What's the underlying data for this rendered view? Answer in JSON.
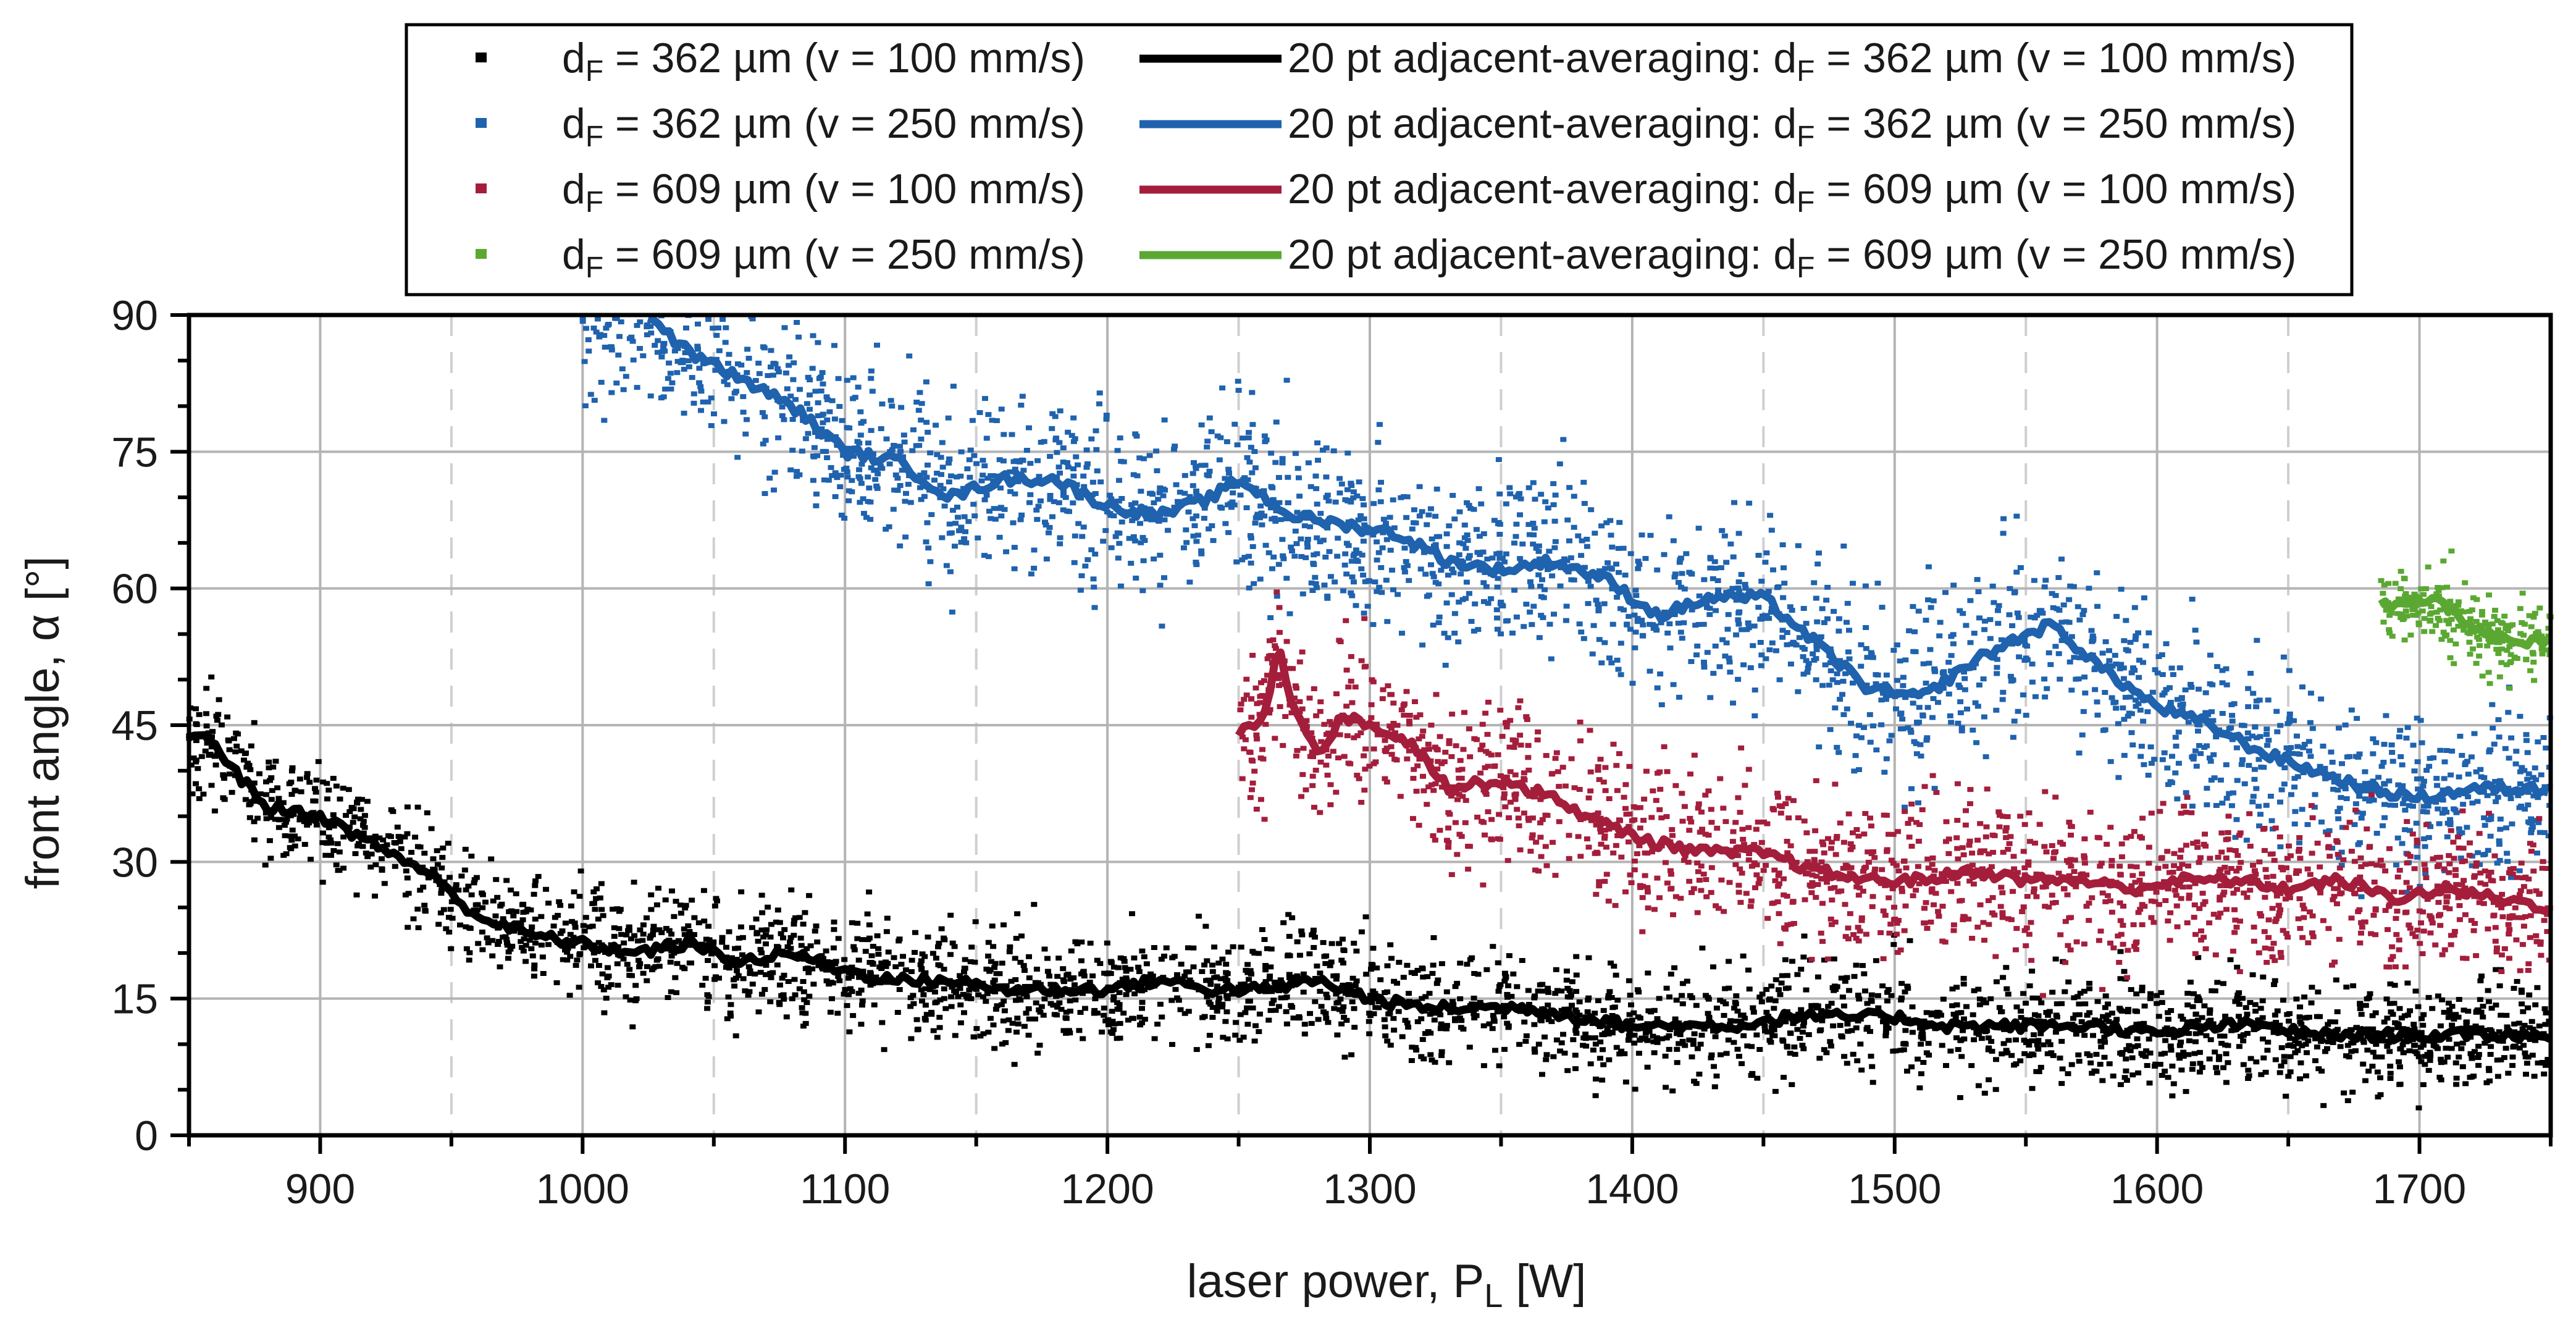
{
  "chart_data": {
    "type": "scatter",
    "title": "",
    "xlabel": "laser power, P_L [W]",
    "ylabel": "front angle, α [°]",
    "xlim": [
      850,
      1750
    ],
    "ylim": [
      0,
      90
    ],
    "xticks": [
      900,
      1000,
      1100,
      1200,
      1300,
      1400,
      1500,
      1600,
      1700
    ],
    "yticks": [
      0,
      15,
      30,
      45,
      60,
      75,
      90
    ],
    "grid": true,
    "legend_position": "top-center (outside plot)",
    "series": [
      {
        "name": "d_F = 362 µm (v = 100 mm/s)",
        "avg_name": "20 pt adjacent-averaging: d_F = 362 µm (v = 100 mm/s)",
        "color": "#000000",
        "x_range": [
          850,
          1750
        ],
        "scatter_spread": 4.5,
        "avg": [
          [
            850,
            44
          ],
          [
            860,
            43
          ],
          [
            870,
            39
          ],
          [
            880,
            36
          ],
          [
            900,
            35
          ],
          [
            920,
            32
          ],
          [
            940,
            29
          ],
          [
            960,
            24
          ],
          [
            980,
            22
          ],
          [
            1000,
            21
          ],
          [
            1020,
            20
          ],
          [
            1040,
            21
          ],
          [
            1060,
            19
          ],
          [
            1080,
            20
          ],
          [
            1100,
            18
          ],
          [
            1120,
            17
          ],
          [
            1140,
            17
          ],
          [
            1160,
            16
          ],
          [
            1180,
            16
          ],
          [
            1200,
            16
          ],
          [
            1220,
            17
          ],
          [
            1240,
            16
          ],
          [
            1260,
            16
          ],
          [
            1280,
            17
          ],
          [
            1300,
            15
          ],
          [
            1320,
            14
          ],
          [
            1340,
            14
          ],
          [
            1360,
            14
          ],
          [
            1380,
            13
          ],
          [
            1400,
            12
          ],
          [
            1420,
            12
          ],
          [
            1440,
            12
          ],
          [
            1460,
            13
          ],
          [
            1480,
            13
          ],
          [
            1500,
            13
          ],
          [
            1520,
            12
          ],
          [
            1540,
            12
          ],
          [
            1560,
            12
          ],
          [
            1580,
            12
          ],
          [
            1600,
            11
          ],
          [
            1620,
            12
          ],
          [
            1640,
            12
          ],
          [
            1660,
            11
          ],
          [
            1680,
            11
          ],
          [
            1700,
            11
          ],
          [
            1720,
            11
          ],
          [
            1750,
            11
          ]
        ]
      },
      {
        "name": "d_F = 362 µm (v = 250 mm/s)",
        "avg_name": "20 pt adjacent-averaging: d_F = 362 µm (v = 250 mm/s)",
        "color": "#1f62ae",
        "x_range": [
          1000,
          1750
        ],
        "scatter_spread": 7,
        "avg": [
          [
            1025,
            90
          ],
          [
            1040,
            86
          ],
          [
            1060,
            83
          ],
          [
            1080,
            80
          ],
          [
            1100,
            75
          ],
          [
            1120,
            74
          ],
          [
            1140,
            70
          ],
          [
            1160,
            72
          ],
          [
            1180,
            72
          ],
          [
            1200,
            69
          ],
          [
            1220,
            68
          ],
          [
            1240,
            70
          ],
          [
            1250,
            72
          ],
          [
            1270,
            68
          ],
          [
            1290,
            67
          ],
          [
            1310,
            66
          ],
          [
            1330,
            63
          ],
          [
            1350,
            62
          ],
          [
            1370,
            63
          ],
          [
            1390,
            61
          ],
          [
            1410,
            57
          ],
          [
            1430,
            59
          ],
          [
            1450,
            59
          ],
          [
            1470,
            54
          ],
          [
            1490,
            49
          ],
          [
            1510,
            48
          ],
          [
            1530,
            52
          ],
          [
            1550,
            55
          ],
          [
            1560,
            56
          ],
          [
            1580,
            51
          ],
          [
            1600,
            47
          ],
          [
            1620,
            45
          ],
          [
            1640,
            42
          ],
          [
            1660,
            40
          ],
          [
            1680,
            38
          ],
          [
            1700,
            37
          ],
          [
            1720,
            38
          ],
          [
            1750,
            38
          ]
        ]
      },
      {
        "name": "d_F = 609 µm (v = 100 mm/s)",
        "avg_name": "20 pt adjacent-averaging: d_F = 609 µm (v = 100 mm/s)",
        "color": "#a41e3c",
        "x_range": [
          1250,
          1750
        ],
        "scatter_spread": 6,
        "avg": [
          [
            1250,
            44
          ],
          [
            1260,
            46
          ],
          [
            1265,
            54
          ],
          [
            1270,
            48
          ],
          [
            1280,
            42
          ],
          [
            1290,
            46
          ],
          [
            1300,
            45
          ],
          [
            1310,
            44
          ],
          [
            1320,
            42
          ],
          [
            1330,
            38
          ],
          [
            1350,
            39
          ],
          [
            1370,
            37
          ],
          [
            1390,
            34
          ],
          [
            1410,
            32
          ],
          [
            1430,
            31
          ],
          [
            1450,
            31
          ],
          [
            1470,
            29
          ],
          [
            1490,
            28
          ],
          [
            1510,
            28
          ],
          [
            1530,
            29
          ],
          [
            1550,
            28
          ],
          [
            1570,
            28
          ],
          [
            1590,
            27
          ],
          [
            1610,
            28
          ],
          [
            1630,
            28
          ],
          [
            1650,
            27
          ],
          [
            1670,
            28
          ],
          [
            1690,
            26
          ],
          [
            1710,
            27
          ],
          [
            1730,
            26
          ],
          [
            1750,
            25
          ]
        ]
      },
      {
        "name": "d_F = 609 µm (v = 250 mm/s)",
        "avg_name": "20 pt adjacent-averaging: d_F = 609 µm (v = 250 mm/s)",
        "color": "#5aa832",
        "x_range": [
          1685,
          1750
        ],
        "scatter_spread": 3.5,
        "avg": [
          [
            1685,
            58
          ],
          [
            1695,
            58
          ],
          [
            1705,
            59
          ],
          [
            1715,
            57
          ],
          [
            1725,
            55
          ],
          [
            1735,
            54
          ],
          [
            1750,
            54
          ]
        ]
      }
    ]
  },
  "legend": {
    "items": [
      {
        "scatter_label": "= 362 µm (v = 100 mm/s)",
        "avg_label": "20 pt adjacent-averaging: d",
        "avg_label_tail": "= 362 µm (v = 100 mm/s)"
      },
      {
        "scatter_label": "= 362 µm (v = 250 mm/s)",
        "avg_label": "20 pt adjacent-averaging: d",
        "avg_label_tail": "= 362 µm (v = 250 mm/s)"
      },
      {
        "scatter_label": "= 609 µm (v = 100 mm/s)",
        "avg_label": "20 pt adjacent-averaging: d",
        "avg_label_tail": "= 609 µm (v = 100 mm/s)"
      },
      {
        "scatter_label": "= 609 µm (v = 250 mm/s)",
        "avg_label": "20 pt adjacent-averaging: d",
        "avg_label_tail": "= 609 µm (v = 250 mm/s)"
      }
    ],
    "d_symbol": "d",
    "f_subscript": "F"
  },
  "axes": {
    "x_title_main": "laser power, P",
    "x_title_sub": "L",
    "x_title_tail": " [W]",
    "y_title": "front angle, α [°]"
  }
}
